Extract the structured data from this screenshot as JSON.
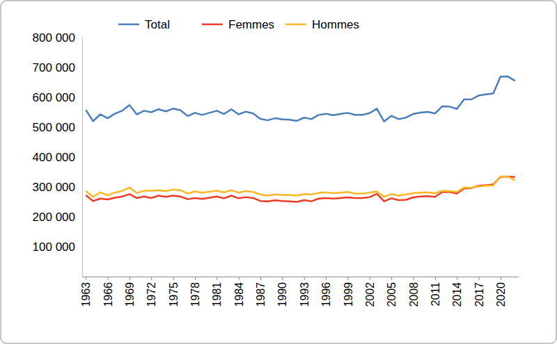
{
  "chart_data": {
    "type": "line",
    "legend": "top",
    "grid": false,
    "x": [
      1963,
      1964,
      1965,
      1966,
      1967,
      1968,
      1969,
      1970,
      1971,
      1972,
      1973,
      1974,
      1975,
      1976,
      1977,
      1978,
      1979,
      1980,
      1981,
      1982,
      1983,
      1984,
      1985,
      1986,
      1987,
      1988,
      1989,
      1990,
      1991,
      1992,
      1993,
      1994,
      1995,
      1996,
      1997,
      1998,
      1999,
      2000,
      2001,
      2002,
      2003,
      2004,
      2005,
      2006,
      2007,
      2008,
      2009,
      2010,
      2011,
      2012,
      2013,
      2014,
      2015,
      2016,
      2017,
      2018,
      2019,
      2020,
      2021,
      2022
    ],
    "xlim": [
      1962.5,
      2022.5
    ],
    "xticks": [
      1963,
      1966,
      1969,
      1972,
      1975,
      1978,
      1981,
      1984,
      1987,
      1990,
      1993,
      1996,
      1999,
      2002,
      2005,
      2008,
      2011,
      2014,
      2017,
      2020
    ],
    "ylim": [
      0,
      800000
    ],
    "yticks": [
      {
        "value": 100000,
        "label": "100 000"
      },
      {
        "value": 200000,
        "label": "200 000"
      },
      {
        "value": 300000,
        "label": "300 000"
      },
      {
        "value": 400000,
        "label": "400 000"
      },
      {
        "value": 500000,
        "label": "500 000"
      },
      {
        "value": 600000,
        "label": "600 000"
      },
      {
        "value": 700000,
        "label": "700 000"
      },
      {
        "value": 800000,
        "label": "800 000"
      }
    ],
    "series": [
      {
        "name": "Total",
        "color": "#4a7ebb",
        "values": [
          558000,
          520000,
          543000,
          530000,
          545000,
          555000,
          574000,
          543000,
          555000,
          550000,
          560000,
          553000,
          562000,
          557000,
          537000,
          548000,
          541000,
          548000,
          555000,
          544000,
          560000,
          543000,
          552000,
          546000,
          528000,
          523000,
          530000,
          526000,
          525000,
          521000,
          532000,
          527000,
          541000,
          545000,
          540000,
          544000,
          548000,
          541000,
          541000,
          547000,
          562000,
          519000,
          538000,
          527000,
          532000,
          544000,
          549000,
          551000,
          546000,
          570000,
          569000,
          561000,
          593000,
          593000,
          606000,
          610000,
          613000,
          669000,
          670000,
          655000
        ]
      },
      {
        "name": "Femmes",
        "color": "#ee3b24",
        "values": [
          272000,
          253000,
          261000,
          258000,
          264000,
          268000,
          276000,
          263000,
          268000,
          263000,
          271000,
          267000,
          271000,
          268000,
          259000,
          263000,
          260000,
          264000,
          268000,
          262000,
          271000,
          262000,
          266000,
          263000,
          253000,
          252000,
          255000,
          253000,
          252000,
          250000,
          256000,
          252000,
          261000,
          263000,
          261000,
          263000,
          265000,
          263000,
          263000,
          266000,
          277000,
          252000,
          262000,
          256000,
          257000,
          265000,
          268000,
          269000,
          267000,
          283000,
          283000,
          278000,
          295000,
          296000,
          304000,
          306000,
          308000,
          334000,
          335000,
          333000
        ]
      },
      {
        "name": "Hommes",
        "color": "#fbb728",
        "values": [
          286000,
          267000,
          282000,
          272000,
          281000,
          287000,
          298000,
          280000,
          287000,
          287000,
          289000,
          286000,
          291000,
          289000,
          278000,
          285000,
          281000,
          284000,
          287000,
          282000,
          289000,
          281000,
          286000,
          283000,
          275000,
          271000,
          275000,
          273000,
          273000,
          271000,
          276000,
          275000,
          280000,
          282000,
          279000,
          281000,
          283000,
          278000,
          278000,
          281000,
          285000,
          267000,
          276000,
          271000,
          275000,
          279000,
          281000,
          282000,
          279000,
          287000,
          286000,
          283000,
          298000,
          297000,
          302000,
          304000,
          305000,
          335000,
          335000,
          322000
        ]
      }
    ]
  }
}
